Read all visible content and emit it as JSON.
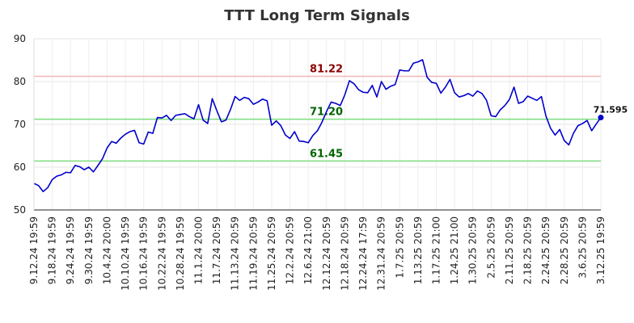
{
  "chart_data": {
    "type": "line",
    "title": "TTT Long Term Signals",
    "xlabel": "",
    "ylabel": "",
    "ylim": [
      50,
      90
    ],
    "yticks": [
      50,
      60,
      70,
      80,
      90
    ],
    "grid": true,
    "x_tick_labels": [
      "9.12.24 19:59",
      "9.18.24 19:59",
      "9.24.24 19:59",
      "9.30.24 19:59",
      "10.4.24 20:00",
      "10.10.24 19:59",
      "10.16.24 19:59",
      "10.22.24 19:59",
      "10.28.24 19:59",
      "11.1.24 20:00",
      "11.7.24 20:59",
      "11.13.24 20:59",
      "11.19.24 20:59",
      "11.25.24 20:59",
      "12.2.24 20:59",
      "12.6.24 21:00",
      "12.12.24 20:59",
      "12.18.24 20:59",
      "12.24.24 17:59",
      "12.31.24 20:59",
      "1.7.25 20:59",
      "1.13.25 20:59",
      "1.17.25 21:00",
      "1.24.25 21:00",
      "1.30.25 20:59",
      "2.5.25 20:59",
      "2.11.25 20:59",
      "2.18.25 20:59",
      "2.24.25 20:59",
      "2.28.25 20:59",
      "3.6.25 20:59",
      "3.12.25 19:59"
    ],
    "reference_lines": [
      {
        "label": "81.22",
        "value": 81.22,
        "color": "#f4b6b6",
        "label_color": "#8b0000"
      },
      {
        "label": "71.20",
        "value": 71.2,
        "color": "#7ddc7d",
        "label_color": "#006400"
      },
      {
        "label": "61.45",
        "value": 61.45,
        "color": "#7ddc7d",
        "label_color": "#006400"
      }
    ],
    "series": [
      {
        "color": "#0000cc",
        "values": [
          56.2,
          55.7,
          54.3,
          55.2,
          57.1,
          57.9,
          58.2,
          58.8,
          58.7,
          60.4,
          60.1,
          59.4,
          60.0,
          58.9,
          60.4,
          62.0,
          64.5,
          66.0,
          65.6,
          66.8,
          67.7,
          68.3,
          68.6,
          65.7,
          65.4,
          68.2,
          67.9,
          71.6,
          71.5,
          72.1,
          70.9,
          72.1,
          72.3,
          72.5,
          71.8,
          71.3,
          74.6,
          71.0,
          70.2,
          76.0,
          73.2,
          70.6,
          71.0,
          73.5,
          76.5,
          75.6,
          76.3,
          76.0,
          74.7,
          75.2,
          75.9,
          75.5,
          69.8,
          70.8,
          69.7,
          67.5,
          66.7,
          68.3,
          66.1,
          66.0,
          65.7,
          67.4,
          68.5,
          70.5,
          73.0,
          75.2,
          74.9,
          74.4,
          76.9,
          80.2,
          79.5,
          78.1,
          77.5,
          77.4,
          79.1,
          76.4,
          80.0,
          78.2,
          78.9,
          79.3,
          82.7,
          82.5,
          82.5,
          84.3,
          84.6,
          85.1,
          81.0,
          79.8,
          79.6,
          77.3,
          78.7,
          80.5,
          77.4,
          76.4,
          76.7,
          77.2,
          76.6,
          77.8,
          77.2,
          75.6,
          72.0,
          71.8,
          73.4,
          74.4,
          75.8,
          78.7,
          74.9,
          75.3,
          76.6,
          76.1,
          75.6,
          76.5,
          71.9,
          69.1,
          67.5,
          68.8,
          66.2,
          65.2,
          67.9,
          69.7,
          70.2,
          70.9,
          68.5,
          70.1,
          71.595
        ]
      }
    ],
    "last_value_label": "71.595"
  }
}
